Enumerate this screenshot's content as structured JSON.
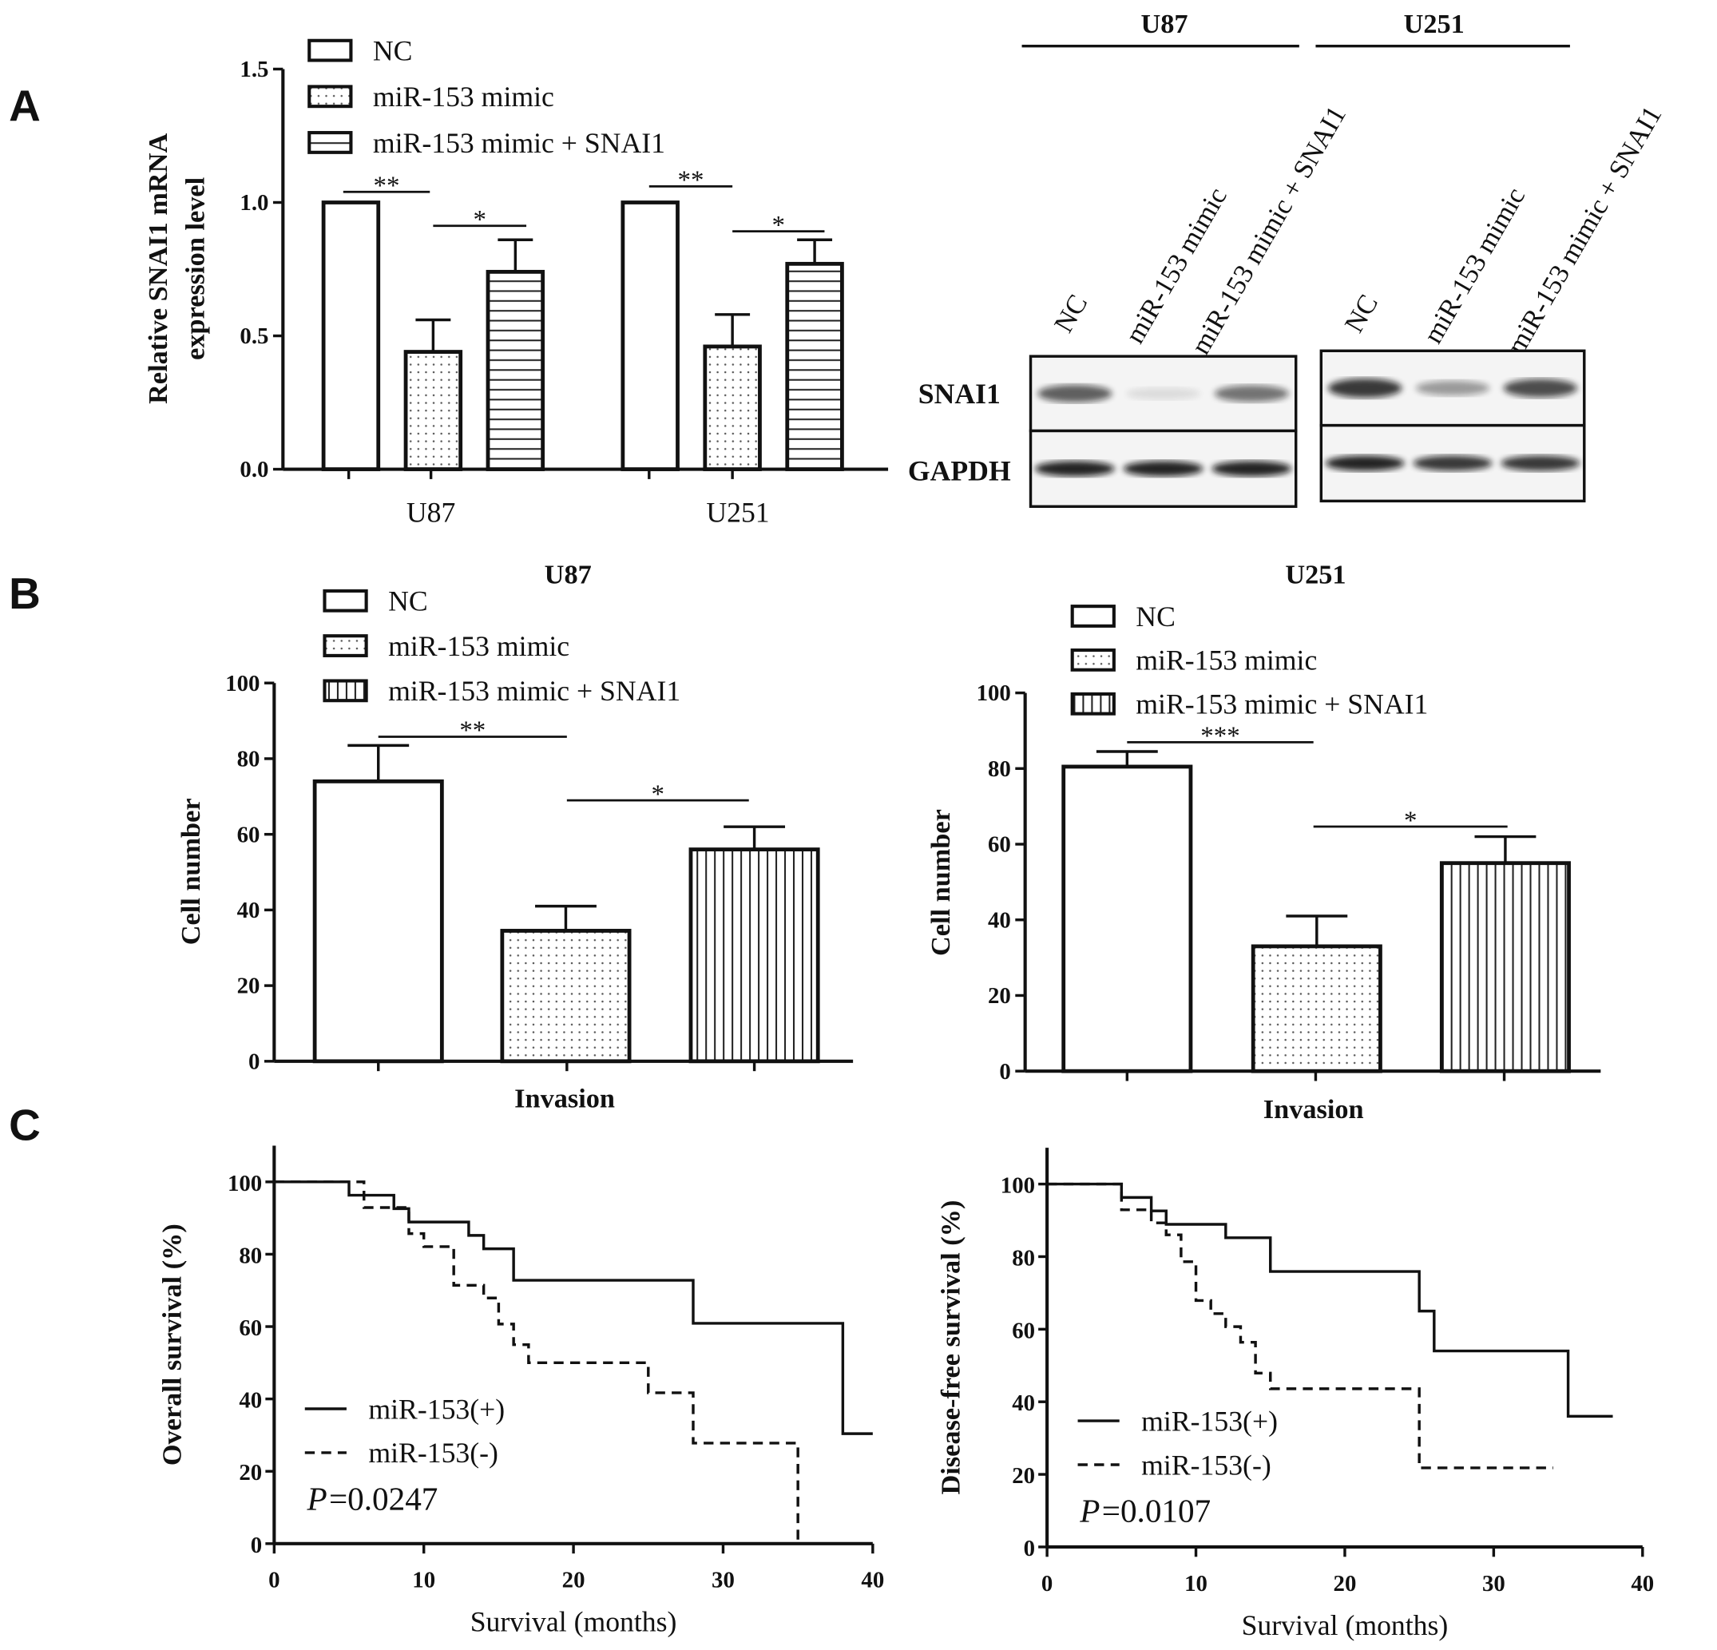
{
  "panels": {
    "A": "A",
    "B": "B",
    "C": "C"
  },
  "western_blot": {
    "groups": [
      {
        "title": "U87",
        "lanes": [
          "NC",
          "miR-153 mimic",
          "miR-153 mimic + SNAI1"
        ],
        "bands": {
          "SNAI1": [
            0.75,
            0.12,
            0.65
          ],
          "GAPDH": [
            1.0,
            1.0,
            1.0
          ]
        }
      },
      {
        "title": "U251",
        "lanes": [
          "NC",
          "miR-153 mimic",
          "miR-153 mimic + SNAI1"
        ],
        "bands": {
          "SNAI1": [
            0.95,
            0.45,
            0.85
          ],
          "GAPDH": [
            1.0,
            0.9,
            0.9
          ]
        }
      }
    ],
    "row_labels": [
      "SNAI1",
      "GAPDH"
    ]
  },
  "chart_data": [
    {
      "type": "bar",
      "title": "",
      "ylabel": [
        "Relative SNAI1 mRNA",
        "expression level"
      ],
      "ylim": [
        0,
        1.5
      ],
      "yticks": [
        "0.0",
        "0.5",
        "1.0",
        "1.5"
      ],
      "categories": [
        "U87",
        "U251"
      ],
      "series": [
        {
          "name": "NC",
          "pattern": "open",
          "values": [
            1.0,
            1.0
          ],
          "errors": [
            0,
            0
          ]
        },
        {
          "name": "miR-153 mimic",
          "pattern": "dots",
          "values": [
            0.44,
            0.46
          ],
          "errors": [
            0.12,
            0.12
          ]
        },
        {
          "name": "miR-153 mimic + SNAI1",
          "pattern": "hlines",
          "values": [
            0.74,
            0.77
          ],
          "errors": [
            0.12,
            0.09
          ]
        }
      ],
      "significance": [
        "**",
        "*",
        "**",
        "*"
      ],
      "legend": "top-left"
    },
    {
      "type": "bar",
      "title": "U87",
      "xlabel": "Invasion",
      "ylabel": [
        "Cell number"
      ],
      "ylim": [
        0,
        100
      ],
      "yticks": [
        "0",
        "20",
        "40",
        "60",
        "80",
        "100"
      ],
      "categories": [
        "Invasion"
      ],
      "series": [
        {
          "name": "NC",
          "pattern": "open",
          "values": [
            74
          ],
          "errors": [
            9.5
          ]
        },
        {
          "name": "miR-153 mimic",
          "pattern": "dots",
          "values": [
            34.5
          ],
          "errors": [
            6.5
          ]
        },
        {
          "name": "miR-153 mimic + SNAI1",
          "pattern": "vlines",
          "values": [
            56
          ],
          "errors": [
            6
          ]
        }
      ],
      "significance": [
        "**",
        "*"
      ],
      "legend": "top-left"
    },
    {
      "type": "bar",
      "title": "U251",
      "xlabel": "Invasion",
      "ylabel": [
        "Cell number"
      ],
      "ylim": [
        0,
        100
      ],
      "yticks": [
        "0",
        "20",
        "40",
        "60",
        "80",
        "100"
      ],
      "categories": [
        "Invasion"
      ],
      "series": [
        {
          "name": "NC",
          "pattern": "open",
          "values": [
            80.5
          ],
          "errors": [
            4
          ]
        },
        {
          "name": "miR-153 mimic",
          "pattern": "dots",
          "values": [
            33
          ],
          "errors": [
            8
          ]
        },
        {
          "name": "miR-153 mimic + SNAI1",
          "pattern": "vlines",
          "values": [
            55
          ],
          "errors": [
            7
          ]
        }
      ],
      "significance": [
        "***",
        "*"
      ],
      "legend": "top-left"
    },
    {
      "type": "line",
      "subtype": "kaplan-meier",
      "xlabel": "Survival (months)",
      "ylabel": "Overall survival (%)",
      "xlim": [
        0,
        40
      ],
      "ylim": [
        0,
        110
      ],
      "xticks": [
        "0",
        "10",
        "20",
        "30",
        "40"
      ],
      "yticks": [
        "0",
        "20",
        "40",
        "60",
        "80",
        "100"
      ],
      "series": [
        {
          "name": "miR-153(+)",
          "style": "solid",
          "steps": [
            [
              0,
              100
            ],
            [
              5,
              96.3
            ],
            [
              8,
              92.6
            ],
            [
              9,
              88.9
            ],
            [
              13,
              85.2
            ],
            [
              14,
              81.5
            ],
            [
              16,
              72.8
            ],
            [
              28,
              60.9
            ],
            [
              38,
              30.4
            ]
          ],
          "end": 40
        },
        {
          "name": "miR-153(-)",
          "style": "dashed",
          "steps": [
            [
              0,
              100
            ],
            [
              6,
              92.9
            ],
            [
              9,
              85.7
            ],
            [
              10,
              82.1
            ],
            [
              12,
              71.4
            ],
            [
              14,
              67.9
            ],
            [
              15,
              60.7
            ],
            [
              16,
              55
            ],
            [
              17,
              50
            ],
            [
              25,
              41.7
            ],
            [
              28,
              27.8
            ],
            [
              35,
              0
            ]
          ],
          "end": 35
        }
      ],
      "p_label": "P",
      "p_value": "=0.0247",
      "legend": "bottom-left"
    },
    {
      "type": "line",
      "subtype": "kaplan-meier",
      "xlabel": "Survival (months)",
      "ylabel": "Disease-free survival (%)",
      "xlim": [
        0,
        40
      ],
      "ylim": [
        0,
        110
      ],
      "xticks": [
        "0",
        "10",
        "20",
        "30",
        "40"
      ],
      "yticks": [
        "0",
        "20",
        "40",
        "60",
        "80",
        "100"
      ],
      "series": [
        {
          "name": "miR-153(+)",
          "style": "solid",
          "steps": [
            [
              0,
              100
            ],
            [
              5,
              96.3
            ],
            [
              7,
              92.6
            ],
            [
              8,
              88.9
            ],
            [
              12,
              85.2
            ],
            [
              15,
              75.9
            ],
            [
              25,
              65
            ],
            [
              26,
              54
            ],
            [
              35,
              36
            ]
          ],
          "end": 38
        },
        {
          "name": "miR-153(-)",
          "style": "dashed",
          "steps": [
            [
              0,
              100
            ],
            [
              5,
              92.9
            ],
            [
              7,
              89.3
            ],
            [
              8,
              86
            ],
            [
              9,
              78.6
            ],
            [
              10,
              67.9
            ],
            [
              11,
              64.3
            ],
            [
              12,
              60.7
            ],
            [
              13,
              56.4
            ],
            [
              14,
              47.9
            ],
            [
              15,
              43.6
            ],
            [
              25,
              21.8
            ]
          ],
          "end": 34
        }
      ],
      "p_label": "P",
      "p_value": "=0.0107",
      "legend": "bottom-left"
    }
  ]
}
